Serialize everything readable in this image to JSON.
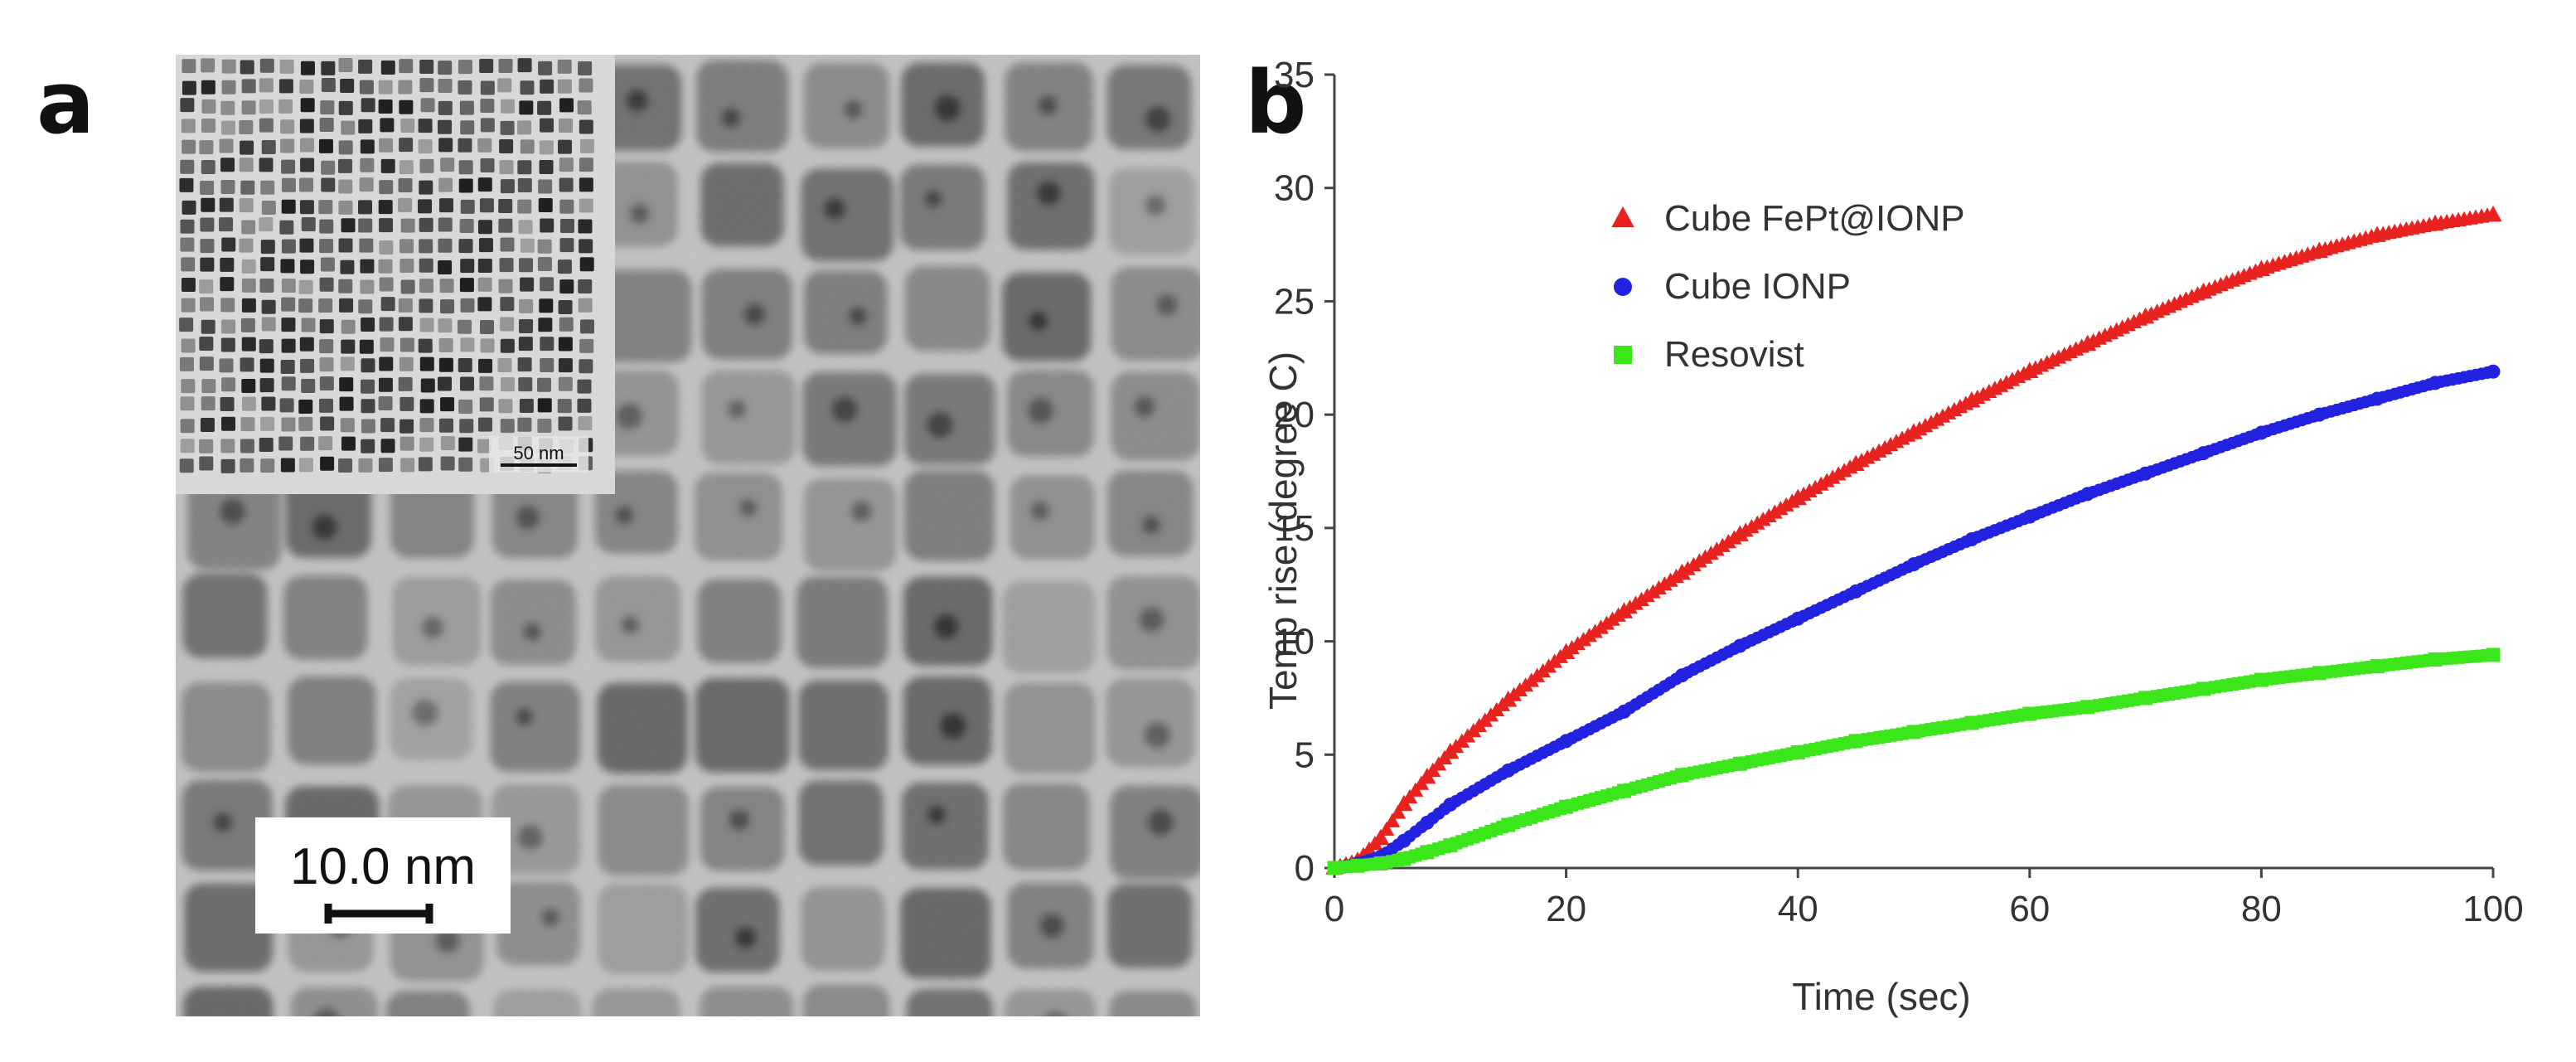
{
  "panels": {
    "a": {
      "letter": "a",
      "inset_scale_label": "50 nm",
      "scale_bar_label": "10.0 nm"
    },
    "b": {
      "letter": "b"
    }
  },
  "colors": {
    "red": "#e8221f",
    "blue": "#2222e0",
    "green": "#3be61a"
  },
  "chart_data": {
    "type": "scatter",
    "xlabel": "Time (sec)",
    "ylabel": "Temp rise (degree C)",
    "xlim": [
      0,
      100
    ],
    "ylim": [
      0,
      35
    ],
    "xticks": [
      0,
      20,
      40,
      60,
      80,
      100
    ],
    "yticks": [
      0,
      5,
      10,
      15,
      20,
      25,
      30,
      35
    ],
    "grid": false,
    "legend_position": "top-left",
    "series": [
      {
        "name": "Cube FePt@IONP",
        "marker": "triangle",
        "color": "#e8221f",
        "x": [
          0,
          2,
          4,
          6,
          8,
          10,
          15,
          20,
          25,
          30,
          35,
          40,
          45,
          50,
          55,
          60,
          65,
          70,
          75,
          80,
          85,
          90,
          95,
          100
        ],
        "y": [
          0,
          0.3,
          1.3,
          2.8,
          4.0,
          5.1,
          7.4,
          9.5,
          11.3,
          13.0,
          14.7,
          16.3,
          17.8,
          19.2,
          20.6,
          21.9,
          23.1,
          24.3,
          25.4,
          26.4,
          27.2,
          27.9,
          28.4,
          28.8
        ]
      },
      {
        "name": "Cube IONP",
        "marker": "circle",
        "color": "#2222e0",
        "x": [
          0,
          2,
          4,
          6,
          8,
          10,
          15,
          20,
          25,
          30,
          35,
          40,
          45,
          50,
          55,
          60,
          65,
          70,
          75,
          80,
          85,
          90,
          95,
          100
        ],
        "y": [
          0,
          0.2,
          0.5,
          1.2,
          2.0,
          2.8,
          4.3,
          5.6,
          6.9,
          8.5,
          9.8,
          11.0,
          12.2,
          13.4,
          14.5,
          15.5,
          16.5,
          17.4,
          18.3,
          19.2,
          20.0,
          20.7,
          21.4,
          21.9
        ]
      },
      {
        "name": "Resovist",
        "marker": "square",
        "color": "#3be61a",
        "x": [
          0,
          2,
          4,
          6,
          8,
          10,
          15,
          20,
          25,
          30,
          35,
          40,
          45,
          50,
          55,
          60,
          65,
          70,
          75,
          80,
          85,
          90,
          95,
          100
        ],
        "y": [
          0,
          0.1,
          0.2,
          0.4,
          0.7,
          1.0,
          1.9,
          2.7,
          3.4,
          4.1,
          4.6,
          5.1,
          5.6,
          6.0,
          6.4,
          6.8,
          7.1,
          7.5,
          7.9,
          8.3,
          8.6,
          8.9,
          9.2,
          9.4
        ]
      }
    ]
  }
}
